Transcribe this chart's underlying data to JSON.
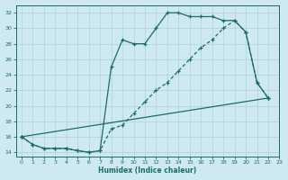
{
  "xlabel": "Humidex (Indice chaleur)",
  "bg_color": "#ceeaf0",
  "grid_color": "#b8d8e0",
  "line_color": "#1a6b6b",
  "xlim": [
    -0.5,
    23
  ],
  "ylim": [
    13.5,
    33
  ],
  "xticks": [
    0,
    1,
    2,
    3,
    4,
    5,
    6,
    7,
    8,
    9,
    10,
    11,
    12,
    13,
    14,
    15,
    16,
    17,
    18,
    19,
    20,
    21,
    22,
    23
  ],
  "yticks": [
    14,
    16,
    18,
    20,
    22,
    24,
    26,
    28,
    30,
    32
  ],
  "curve1_x": [
    0,
    1,
    2,
    3,
    4,
    5,
    6,
    7,
    8,
    9,
    10,
    11,
    12,
    13,
    14,
    15,
    16,
    17,
    18,
    19,
    20,
    21,
    22
  ],
  "curve1_y": [
    16,
    15,
    14.5,
    14.5,
    14.5,
    14.2,
    14.0,
    14.2,
    25.0,
    28.5,
    28.0,
    28.0,
    30.0,
    32.0,
    32.0,
    31.5,
    31.5,
    31.5,
    31.0,
    31.0,
    29.5,
    23.0,
    21.0
  ],
  "curve2_x": [
    0,
    1,
    2,
    3,
    4,
    5,
    6,
    7,
    8,
    9,
    10,
    11,
    12,
    13,
    14,
    15,
    16,
    17,
    18,
    19,
    20,
    21,
    22
  ],
  "curve2_y": [
    16,
    15,
    14.5,
    14.5,
    14.5,
    14.2,
    14.0,
    14.2,
    17.0,
    17.5,
    19.0,
    20.5,
    22.0,
    23.0,
    24.5,
    26.0,
    27.5,
    28.5,
    30.0,
    31.0,
    29.5,
    23.0,
    21.0
  ],
  "curve3_x": [
    0,
    22
  ],
  "curve3_y": [
    16,
    21.0
  ]
}
